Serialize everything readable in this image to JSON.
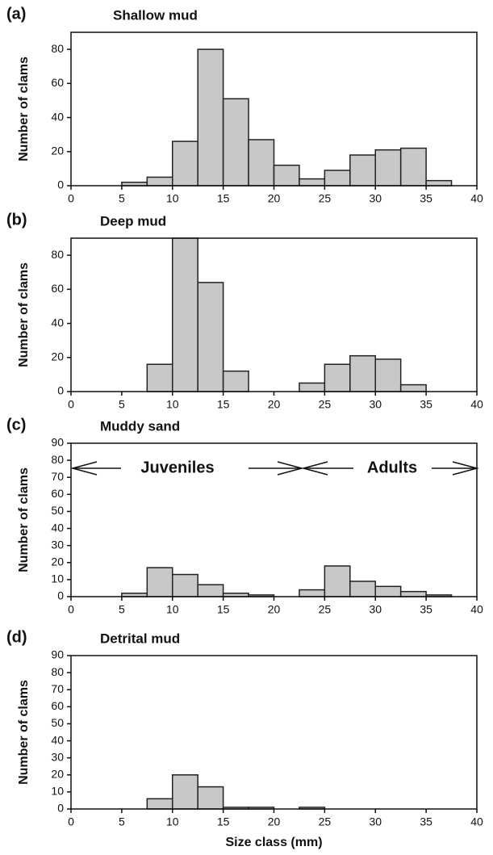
{
  "chart_data": [
    {
      "type": "histogram",
      "panel_label": "(a)",
      "title": "Shallow mud",
      "ylabel": "Number of clams",
      "bins": [
        0,
        2.5,
        5,
        7.5,
        10,
        12.5,
        15,
        17.5,
        20,
        22.5,
        25,
        27.5,
        30,
        32.5,
        35,
        37.5,
        40
      ],
      "values": [
        0,
        0,
        2,
        5,
        26,
        80,
        51,
        27,
        12,
        4,
        9,
        18,
        21,
        22,
        3,
        0
      ],
      "color": "#c8c8c8",
      "xlim": [
        0,
        40
      ],
      "xticks": [
        0,
        5,
        10,
        15,
        20,
        25,
        30,
        35,
        40
      ],
      "ylim": [
        0,
        90
      ],
      "yticks": [
        0,
        20,
        40,
        60,
        80
      ]
    },
    {
      "type": "histogram",
      "panel_label": "(b)",
      "title": "Deep mud",
      "ylabel": "Number of clams",
      "bins": [
        0,
        2.5,
        5,
        7.5,
        10,
        12.5,
        15,
        17.5,
        20,
        22.5,
        25,
        27.5,
        30,
        32.5,
        35,
        37.5,
        40
      ],
      "values": [
        0,
        0,
        0,
        16,
        90,
        64,
        12,
        0,
        0,
        5,
        16,
        21,
        19,
        4,
        0,
        0
      ],
      "color": "#c8c8c8",
      "xlim": [
        0,
        40
      ],
      "xticks": [
        0,
        5,
        10,
        15,
        20,
        25,
        30,
        35,
        40
      ],
      "ylim": [
        0,
        90
      ],
      "yticks": [
        0,
        20,
        40,
        60,
        80
      ]
    },
    {
      "type": "histogram",
      "panel_label": "(c)",
      "title": "Muddy sand",
      "ylabel": "Number of clams",
      "annotations": [
        "Juveniles",
        "Adults"
      ],
      "bins": [
        0,
        2.5,
        5,
        7.5,
        10,
        12.5,
        15,
        17.5,
        20,
        22.5,
        25,
        27.5,
        30,
        32.5,
        35,
        37.5,
        40
      ],
      "values": [
        0,
        0,
        2,
        17,
        13,
        7,
        2,
        1,
        0,
        4,
        18,
        9,
        6,
        3,
        1,
        0
      ],
      "color": "#c8c8c8",
      "xlim": [
        0,
        40
      ],
      "xticks": [
        0,
        5,
        10,
        15,
        20,
        25,
        30,
        35,
        40
      ],
      "ylim": [
        0,
        90
      ],
      "yticks": [
        0,
        10,
        20,
        30,
        40,
        50,
        60,
        70,
        80,
        90
      ]
    },
    {
      "type": "histogram",
      "panel_label": "(d)",
      "title": "Detrital mud",
      "ylabel": "Number of clams",
      "xlabel": "Size class (mm)",
      "bins": [
        0,
        2.5,
        5,
        7.5,
        10,
        12.5,
        15,
        17.5,
        20,
        22.5,
        25,
        27.5,
        30,
        32.5,
        35,
        37.5,
        40
      ],
      "values": [
        0,
        0,
        0,
        6,
        20,
        13,
        1,
        1,
        0,
        1,
        0,
        0,
        0,
        0,
        0,
        0
      ],
      "color": "#c8c8c8",
      "xlim": [
        0,
        40
      ],
      "xticks": [
        0,
        5,
        10,
        15,
        20,
        25,
        30,
        35,
        40
      ],
      "ylim": [
        0,
        90
      ],
      "yticks": [
        0,
        10,
        20,
        30,
        40,
        50,
        60,
        70,
        80,
        90
      ]
    }
  ]
}
